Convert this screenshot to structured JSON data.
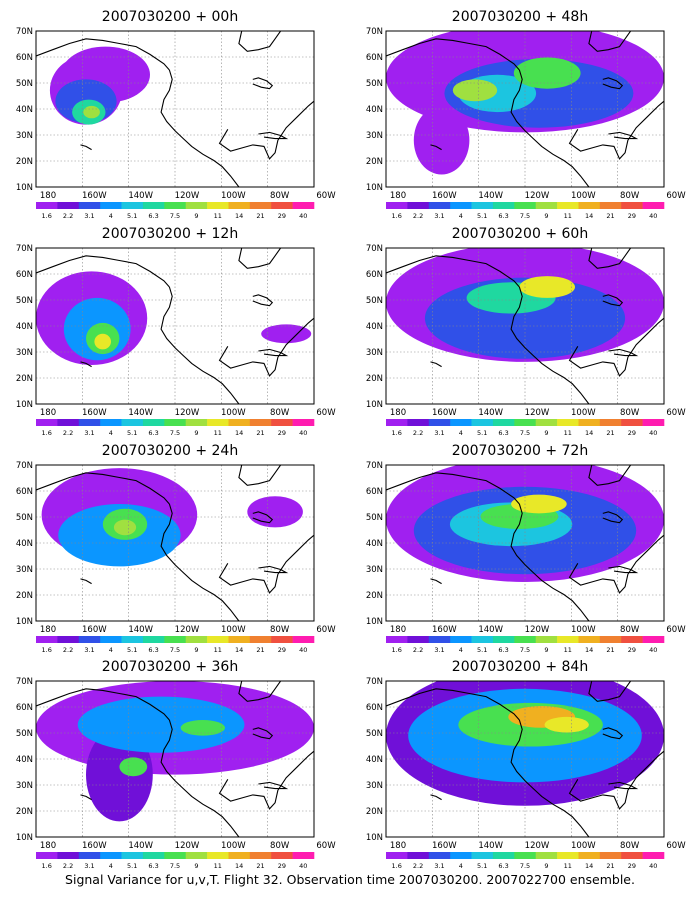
{
  "panels": [
    {
      "title": "2007030200 + 00h",
      "lead": "00h"
    },
    {
      "title": "2007030200 + 48h",
      "lead": "48h"
    },
    {
      "title": "2007030200 + 12h",
      "lead": "12h"
    },
    {
      "title": "2007030200 + 60h",
      "lead": "60h"
    },
    {
      "title": "2007030200 + 24h",
      "lead": "24h"
    },
    {
      "title": "2007030200 + 72h",
      "lead": "72h"
    },
    {
      "title": "2007030200 + 36h",
      "lead": "36h"
    },
    {
      "title": "2007030200 + 84h",
      "lead": "84h"
    }
  ],
  "lat_labels": [
    "70N",
    "60N",
    "50N",
    "40N",
    "30N",
    "20N",
    "10N"
  ],
  "lon_labels": [
    "180",
    "160W",
    "140W",
    "120W",
    "100W",
    "80W",
    "60W"
  ],
  "colorbar": {
    "levels": [
      "1.6",
      "2.2",
      "3.1",
      "4",
      "5.1",
      "6.3",
      "7.5",
      "9",
      "11",
      "14",
      "21",
      "29",
      "40"
    ],
    "colors": [
      "#a020f0",
      "#7010d8",
      "#3050e8",
      "#0b96ff",
      "#1cc5e0",
      "#1fd8a0",
      "#48e050",
      "#a0e040",
      "#e8e828",
      "#f0b020",
      "#f08030",
      "#f05040",
      "#ff1cb0"
    ]
  },
  "footer": "Signal Variance for u,v,T. Flight 32. Observation time 2007030200. 2007022700 ensemble.",
  "colors": {
    "background": "#ffffff",
    "coastline": "#000000",
    "grid": "#888888"
  }
}
